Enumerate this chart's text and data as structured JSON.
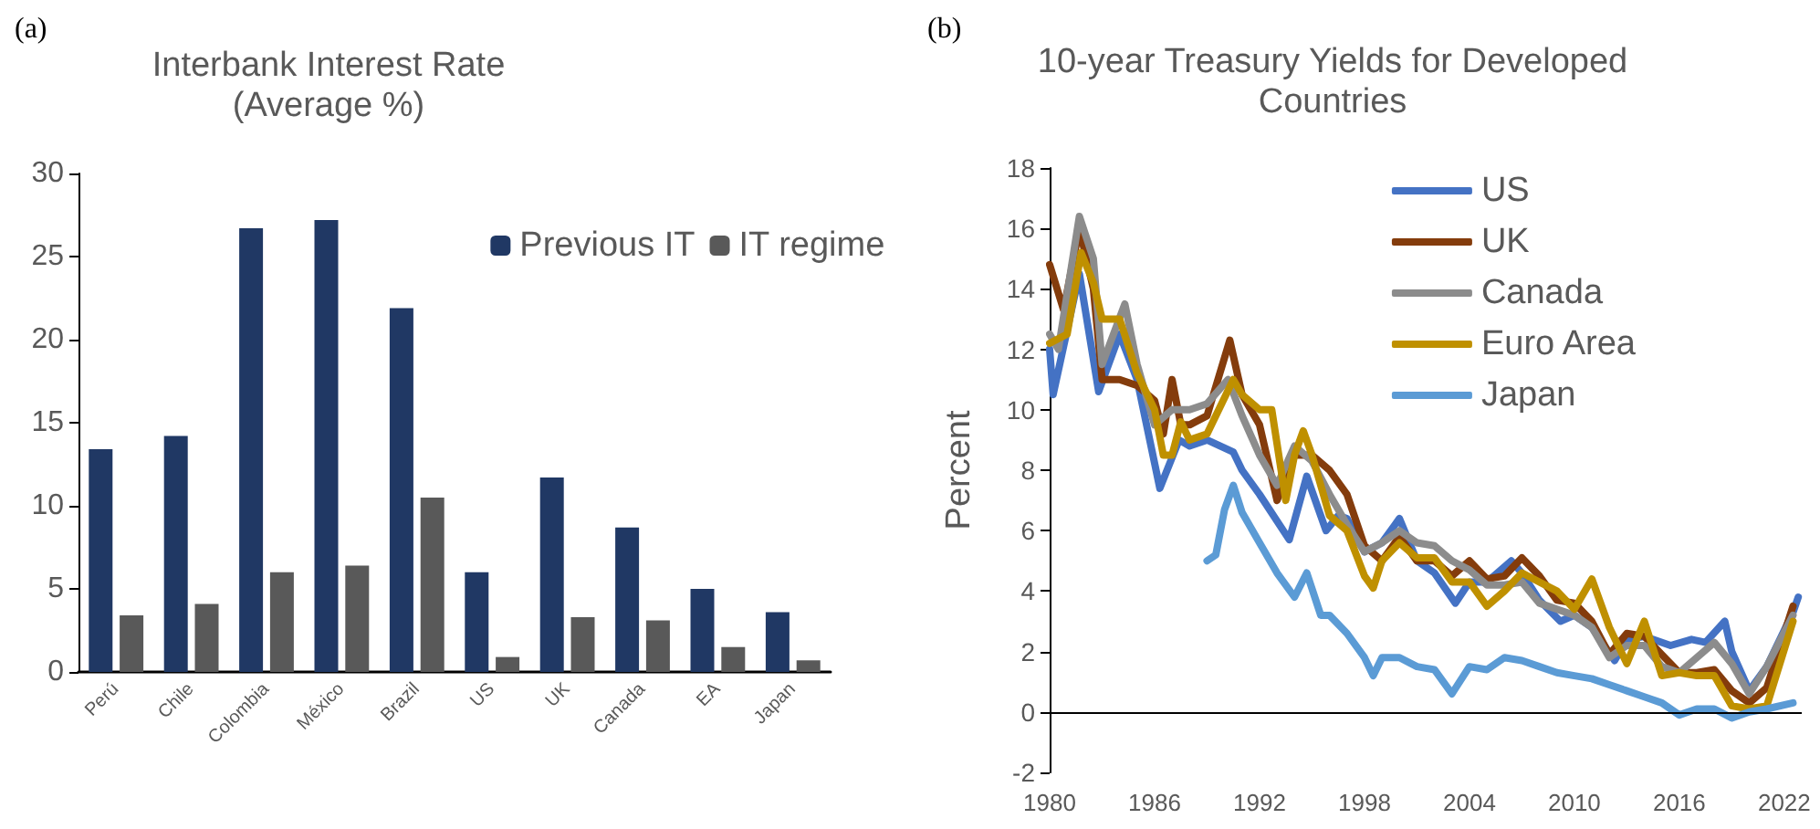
{
  "chart_data": [
    {
      "type": "bar",
      "title": "Interbank Interest Rate\n(Average %)",
      "annotations": [
        "(a)"
      ],
      "categories": [
        "Perú",
        "Chile",
        "Colombia",
        "México",
        "Brazil",
        "US",
        "UK",
        "Canada",
        "EA",
        "Japan"
      ],
      "series": [
        {
          "name": "Previous IT",
          "color": "#203864",
          "values": [
            13.4,
            14.2,
            26.7,
            27.2,
            21.9,
            6.0,
            11.7,
            8.7,
            5.0,
            3.6
          ]
        },
        {
          "name": "IT regime",
          "color": "#595959",
          "values": [
            3.4,
            4.1,
            6.0,
            6.4,
            10.5,
            0.9,
            3.3,
            3.1,
            1.5,
            0.7
          ]
        }
      ],
      "ylim": [
        0,
        30
      ],
      "yticks": [
        0,
        5,
        10,
        15,
        20,
        25,
        30
      ],
      "grid": false,
      "legend": "top right"
    },
    {
      "type": "line",
      "title": "10-year Treasury Yields for Developed\nCountries",
      "ylabel": "Percent",
      "annotations": [
        "(b)"
      ],
      "series": [
        {
          "name": "US",
          "color": "#4472c4",
          "x": [
            1980,
            1980.2,
            1981.7,
            1982.8,
            1984,
            1985,
            1986.3,
            1987.4,
            1988,
            1989,
            1990.5,
            1991,
            1992,
            1993.7,
            1994.7,
            1995.8,
            1996.5,
            1997,
            1998,
            1999,
            2000,
            2001,
            2002,
            2003.2,
            2004,
            2005,
            2006.4,
            2007,
            2008,
            2009.2,
            2010,
            2011,
            2012.3,
            2013,
            2014,
            2015.5,
            2016.7,
            2017.5,
            2018.6,
            2019,
            2020,
            2021,
            2022.5,
            2022.8
          ],
          "values": [
            12,
            10.5,
            14.5,
            10.6,
            12.5,
            11,
            7.4,
            9,
            8.8,
            9,
            8.6,
            8,
            7.2,
            5.7,
            7.8,
            6,
            6.5,
            6.4,
            5.3,
            5.6,
            6.4,
            5,
            4.6,
            3.6,
            4.3,
            4.3,
            5,
            4.6,
            3.7,
            3,
            3.2,
            2.8,
            1.7,
            2.4,
            2.5,
            2.2,
            2.4,
            2.3,
            3,
            2,
            0.7,
            1.5,
            3.3,
            3.8
          ]
        },
        {
          "name": "UK",
          "color": "#843c0c",
          "x": [
            1980,
            1980.8,
            1981.7,
            1982.5,
            1983,
            1984,
            1985,
            1986,
            1986.5,
            1987,
            1987.5,
            1988,
            1989,
            1990.3,
            1991,
            1992,
            1993,
            1994,
            1995,
            1996,
            1997,
            1998,
            1999,
            2000,
            2001,
            2002,
            2003,
            2004,
            2005,
            2006,
            2007,
            2008,
            2009,
            2010,
            2011,
            2012,
            2013,
            2014,
            2015,
            2016,
            2017,
            2018,
            2019,
            2020,
            2021,
            2022.5
          ],
          "values": [
            14.8,
            13.3,
            16,
            14,
            11,
            11,
            10.8,
            10.3,
            9.2,
            11,
            9.5,
            9.5,
            9.8,
            12.3,
            10.5,
            9.5,
            7,
            8.5,
            8.5,
            8,
            7.2,
            5.5,
            5,
            5.8,
            5,
            5,
            4.5,
            5,
            4.4,
            4.5,
            5.1,
            4.5,
            3.7,
            3.6,
            3,
            1.9,
            2.6,
            2.5,
            1.9,
            1.3,
            1.3,
            1.4,
            0.7,
            0.3,
            0.8,
            3.5
          ]
        },
        {
          "name": "Canada",
          "color": "#8c8c8c",
          "x": [
            1980,
            1980.5,
            1981.7,
            1982.5,
            1983,
            1984.3,
            1985,
            1986,
            1987,
            1988,
            1989,
            1990.2,
            1991,
            1992,
            1993,
            1994,
            1995,
            1996,
            1997,
            1998,
            1999,
            2000,
            2001,
            2002,
            2003,
            2004,
            2005,
            2006,
            2007,
            2008,
            2009,
            2010,
            2011,
            2012,
            2013,
            2014,
            2015,
            2016,
            2017,
            2018,
            2019,
            2020,
            2021,
            2022.5
          ],
          "values": [
            12.5,
            12,
            16.4,
            15,
            11.5,
            13.5,
            11.5,
            9.5,
            10,
            10,
            10.2,
            11,
            9.8,
            8.5,
            7.5,
            8.8,
            8.3,
            7.2,
            6.2,
            5.3,
            5.6,
            6,
            5.6,
            5.5,
            5,
            4.7,
            4.2,
            4.2,
            4.3,
            3.6,
            3.4,
            3.2,
            2.8,
            1.8,
            2.2,
            2.2,
            1.5,
            1.3,
            1.8,
            2.3,
            1.6,
            0.6,
            1.5,
            3.2
          ]
        },
        {
          "name": "Euro Area",
          "color": "#bf9000",
          "x": [
            1980,
            1981,
            1981.8,
            1982.5,
            1983,
            1984,
            1985,
            1986,
            1986.5,
            1987,
            1987.5,
            1988,
            1989,
            1990.5,
            1991,
            1992,
            1992.7,
            1993.5,
            1994,
            1994.5,
            1995,
            1996,
            1997,
            1998,
            1998.5,
            1999,
            2000,
            2001,
            2002,
            2003,
            2004,
            2005,
            2006,
            2007,
            2008,
            2009,
            2010,
            2011,
            2012,
            2013,
            2014,
            2015,
            2016,
            2017,
            2018,
            2019,
            2020,
            2021,
            2022.5
          ],
          "values": [
            12.2,
            12.5,
            15.2,
            14.2,
            13,
            13,
            11.2,
            10,
            8.5,
            8.5,
            9.6,
            9,
            9.2,
            11,
            10.5,
            10,
            10,
            7,
            8.5,
            9.3,
            8.5,
            6.5,
            6,
            4.5,
            4.1,
            5,
            5.6,
            5.1,
            5.1,
            4.3,
            4.3,
            3.5,
            4,
            4.6,
            4.3,
            4,
            3.4,
            4.4,
            2.8,
            1.6,
            3,
            1.2,
            1.3,
            1.2,
            1.2,
            0.2,
            0.1,
            0.2,
            3
          ]
        },
        {
          "name": "Japan",
          "color": "#5b9bd5",
          "x": [
            1989,
            1989.5,
            1990,
            1990.5,
            1991,
            1992,
            1993,
            1994,
            1994.7,
            1995.5,
            1996,
            1997,
            1998,
            1998.5,
            1999,
            2000,
            2001,
            2002,
            2003,
            2004,
            2005,
            2006,
            2007,
            2008,
            2009,
            2010,
            2011,
            2012,
            2013,
            2014,
            2015,
            2016,
            2017,
            2018,
            2019,
            2020,
            2021,
            2022.5
          ],
          "values": [
            5,
            5.2,
            6.7,
            7.5,
            6.6,
            5.6,
            4.6,
            3.8,
            4.6,
            3.2,
            3.2,
            2.6,
            1.8,
            1.2,
            1.8,
            1.8,
            1.5,
            1.4,
            0.6,
            1.5,
            1.4,
            1.8,
            1.7,
            1.5,
            1.3,
            1.2,
            1.1,
            0.9,
            0.7,
            0.5,
            0.3,
            -0.1,
            0.1,
            0.1,
            -0.2,
            0,
            0.1,
            0.3
          ]
        }
      ],
      "xlim": [
        1980,
        2023
      ],
      "xticks": [
        1980,
        1986,
        1992,
        1998,
        2004,
        2010,
        2016,
        2022
      ],
      "ylim": [
        -2,
        18
      ],
      "yticks": [
        -2,
        0,
        2,
        4,
        6,
        8,
        10,
        12,
        14,
        16,
        18
      ],
      "ref_lines": [
        {
          "axis": "y",
          "value": 0,
          "color": "#000000"
        }
      ],
      "grid": false,
      "legend": "top right",
      "marker": "none",
      "line_style": "solid"
    }
  ]
}
